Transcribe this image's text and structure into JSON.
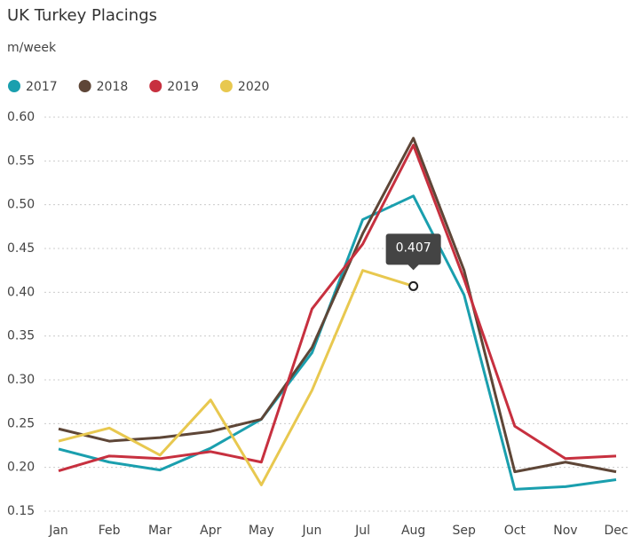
{
  "chart_data": {
    "type": "line",
    "title": "UK Turkey Placings",
    "subtitle": "m/week",
    "categories": [
      "Jan",
      "Feb",
      "Mar",
      "Apr",
      "May",
      "Jun",
      "Jul",
      "Aug",
      "Sep",
      "Oct",
      "Nov",
      "Dec"
    ],
    "series": [
      {
        "name": "2017",
        "color": "#1a9fae",
        "values": [
          0.221,
          0.206,
          0.197,
          0.222,
          0.255,
          0.331,
          0.483,
          0.51,
          0.397,
          0.175,
          0.178,
          0.186
        ]
      },
      {
        "name": "2018",
        "color": "#5e4637",
        "values": [
          0.244,
          0.23,
          0.234,
          0.241,
          0.255,
          0.337,
          0.467,
          0.576,
          0.425,
          0.195,
          0.206,
          0.195
        ]
      },
      {
        "name": "2019",
        "color": "#c7303f",
        "values": [
          0.196,
          0.213,
          0.21,
          0.218,
          0.206,
          0.381,
          0.455,
          0.568,
          0.415,
          0.247,
          0.21,
          0.213
        ]
      },
      {
        "name": "2020",
        "color": "#e8c84f",
        "values": [
          0.23,
          0.245,
          0.214,
          0.277,
          0.18,
          0.288,
          0.425,
          0.407,
          null,
          null,
          null,
          null
        ]
      }
    ],
    "ylim": [
      0.15,
      0.6
    ],
    "yticks": [
      0.15,
      {
        "value": 0.2,
        "label": "0.20"
      },
      0.25,
      {
        "value": 0.3,
        "label": "0.30"
      },
      0.35,
      {
        "value": 0.4,
        "label": "0.40"
      },
      0.45,
      {
        "value": 0.5,
        "label": "0.50"
      },
      0.55,
      {
        "value": 0.6,
        "label": "0.60"
      }
    ],
    "grid": true
  }
}
